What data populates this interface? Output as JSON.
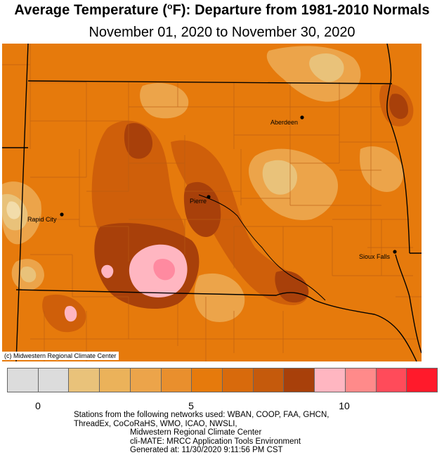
{
  "header": {
    "title_prefix": "Average Temperature (",
    "title_degree": "o",
    "title_suffix": "F): Departure from 1981-2010 Normals",
    "subtitle": "November 01, 2020 to November 30, 2020"
  },
  "map": {
    "cities": [
      {
        "name": "Aberdeen"
      },
      {
        "name": "Pierre"
      },
      {
        "name": "Rapid City"
      },
      {
        "name": "Sioux Falls"
      }
    ],
    "copyright": "(c) Midwestern Regional Climate Center",
    "colors": {
      "base": "#e67a0c",
      "light": "#eca44a",
      "lighter": "#e9c27a",
      "pale": "#f2dcaa",
      "dark": "#cf5f0a",
      "darker": "#a8400a",
      "pink": "#ffb6c1",
      "pink_dark": "#ff8aa0",
      "boundary": "#000000",
      "county": "#b85d14"
    }
  },
  "legend": {
    "colors": [
      "#dcdcdc",
      "#dcdcdc",
      "#e9c27a",
      "#ebb25a",
      "#eca44a",
      "#e98f2d",
      "#e67a0c",
      "#d86a0c",
      "#c55a0c",
      "#a8400a",
      "#ffb6c1",
      "#ff8a8a",
      "#ff4b5a",
      "#ff1a2b"
    ],
    "ticks": [
      "0",
      "5",
      "10"
    ]
  },
  "footer": {
    "line1": "Stations from the following networks used: WBAN, COOP, FAA, GHCN,",
    "line2": "ThreadEx, CoCoRaHS, WMO, ICAO, NWSLI,",
    "line3": "Midwestern Regional Climate Center",
    "line4": "cli-MATE: MRCC Application Tools Environment",
    "line5": "Generated at: 11/30/2020 9:11:56 PM CST"
  }
}
